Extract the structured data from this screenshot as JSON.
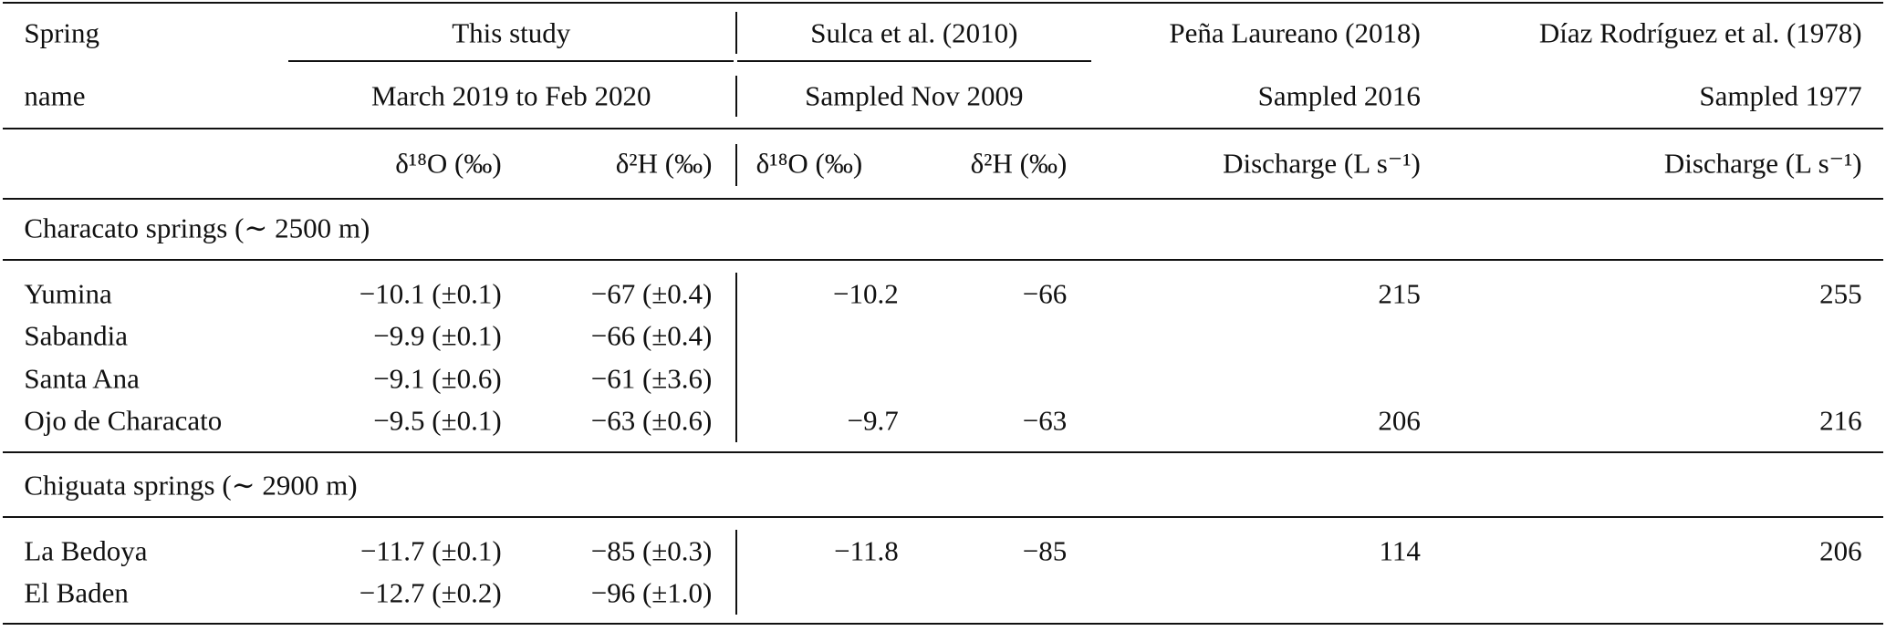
{
  "header": {
    "spring_label": [
      "Spring",
      "name"
    ],
    "groups": [
      {
        "title": "This study",
        "period": "March 2019 to Feb 2020",
        "columns": [
          "δ¹⁸O (‰)",
          "δ²H (‰)"
        ]
      },
      {
        "title": "Sulca et al. (2010)",
        "period": "Sampled Nov 2009",
        "columns": [
          "δ¹⁸O (‰)",
          "δ²H (‰)"
        ]
      },
      {
        "title": "Peña Laureano (2018)",
        "period": "Sampled 2016",
        "columns": [
          "Discharge (L s⁻¹)"
        ]
      },
      {
        "title": "Díaz Rodríguez et al. (1978)",
        "period": "Sampled 1977",
        "columns": [
          "Discharge (L s⁻¹)"
        ]
      }
    ]
  },
  "sections": [
    {
      "title": "Characato springs (∼ 2500 m)",
      "rows": [
        [
          "Yumina",
          "−10.1 (±0.1)",
          "−67 (±0.4)",
          "−10.2",
          "−66",
          "215",
          "255"
        ],
        [
          "Sabandia",
          "−9.9 (±0.1)",
          "−66 (±0.4)",
          null,
          null,
          null,
          null
        ],
        [
          "Santa Ana",
          "−9.1 (±0.6)",
          "−61 (±3.6)",
          null,
          null,
          null,
          null
        ],
        [
          "Ojo de Characato",
          "−9.5 (±0.1)",
          "−63 (±0.6)",
          "−9.7",
          "−63",
          "206",
          "216"
        ]
      ]
    },
    {
      "title": "Chiguata springs (∼ 2900 m)",
      "rows": [
        [
          "La Bedoya",
          "−11.7 (±0.1)",
          "−85 (±0.3)",
          "−11.8",
          "−85",
          "114",
          "206"
        ],
        [
          "El Baden",
          "−12.7 (±0.2)",
          "−96 (±1.0)",
          null,
          null,
          null,
          null
        ]
      ]
    }
  ]
}
